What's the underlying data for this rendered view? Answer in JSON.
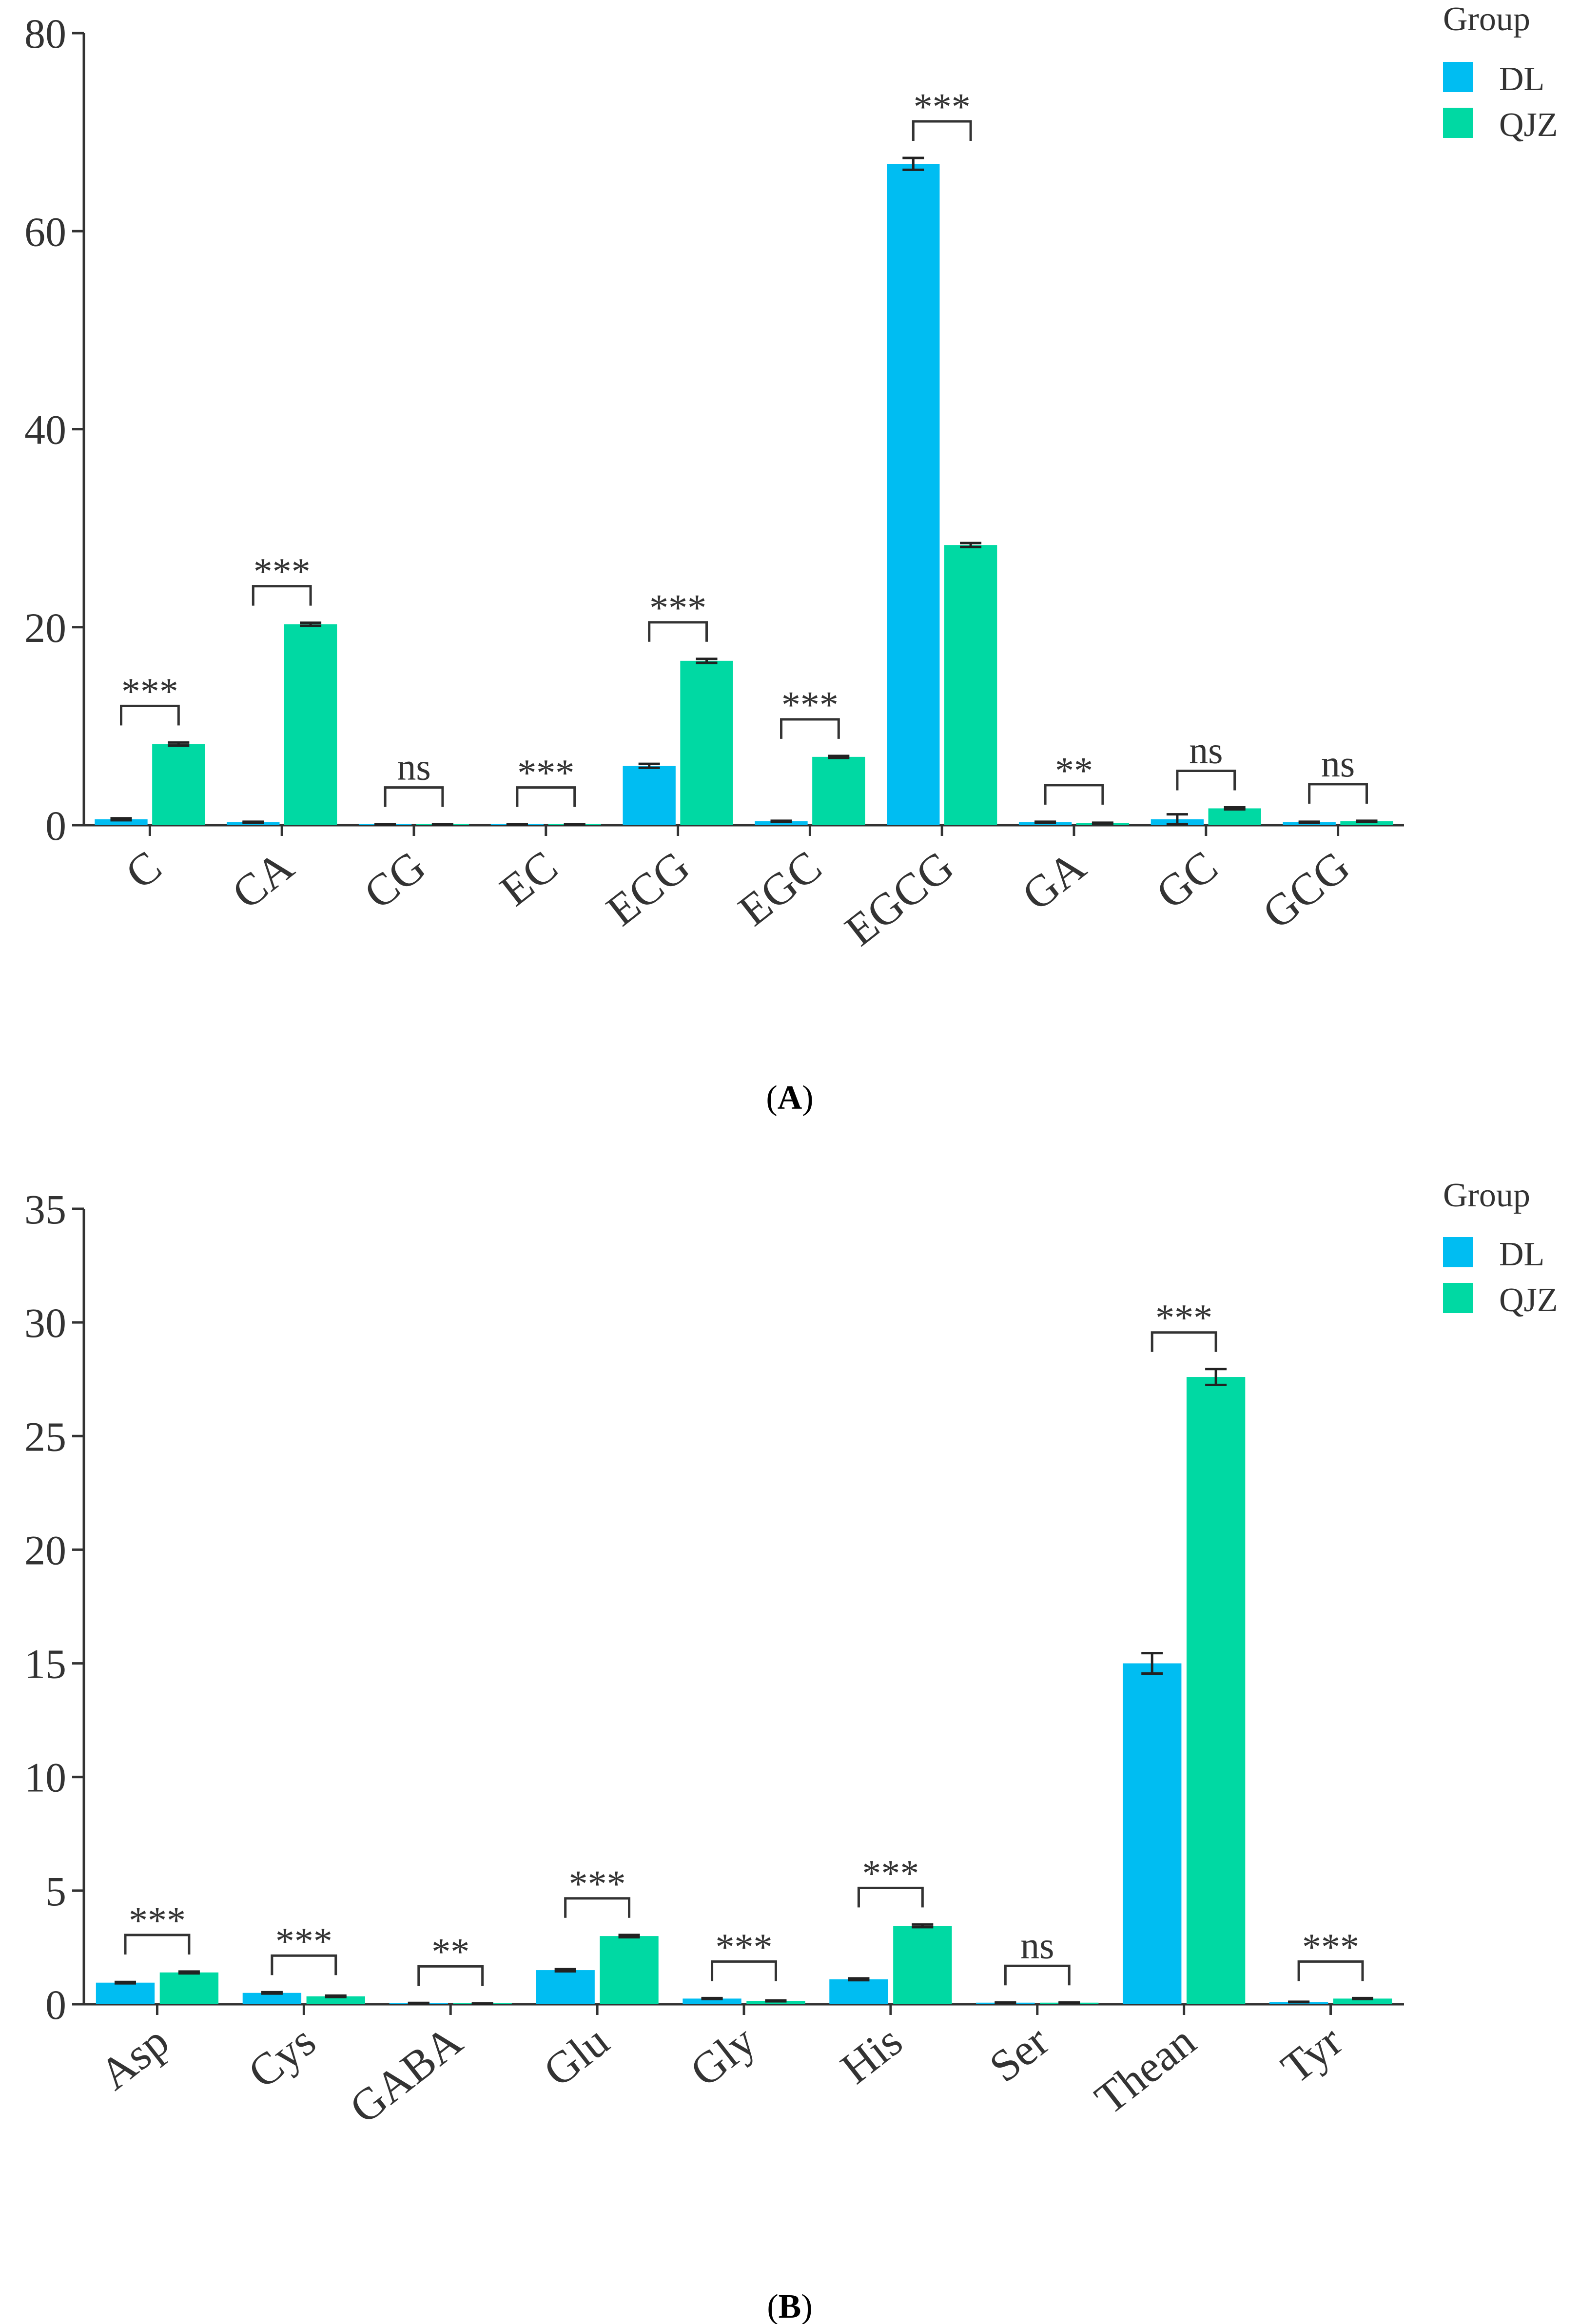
{
  "chart_data": [
    {
      "type": "bar",
      "panel": "A",
      "categories": [
        "C",
        "CA",
        "CG",
        "EC",
        "ECG",
        "EGC",
        "EGCG",
        "GA",
        "GC",
        "GCG"
      ],
      "series": [
        {
          "name": "DL",
          "color": "#00BDF2",
          "values": [
            0.6,
            0.3,
            0.1,
            0.1,
            6.0,
            0.4,
            66.8,
            0.3,
            0.6,
            0.3
          ],
          "errors": [
            0.1,
            0.05,
            0.02,
            0.02,
            0.2,
            0.05,
            0.6,
            0.05,
            0.5,
            0.05
          ]
        },
        {
          "name": "QJZ",
          "color": "#00D9A3",
          "values": [
            8.2,
            20.3,
            0.1,
            0.1,
            16.6,
            6.9,
            28.3,
            0.2,
            1.7,
            0.4
          ],
          "errors": [
            0.15,
            0.15,
            0.02,
            0.02,
            0.2,
            0.1,
            0.2,
            0.05,
            0.1,
            0.05
          ]
        }
      ],
      "significance": [
        "***",
        "***",
        "ns",
        "***",
        "***",
        "***",
        "***",
        "**",
        "ns",
        "ns"
      ],
      "ylim": [
        0,
        80
      ],
      "yticks": [
        0,
        20,
        40,
        60,
        80
      ],
      "legend": {
        "title": "Group",
        "position": "top-right"
      },
      "label": "A"
    },
    {
      "type": "bar",
      "panel": "B",
      "categories": [
        "Asp",
        "Cys",
        "GABA",
        "Glu",
        "Gly",
        "His",
        "Ser",
        "Thean",
        "Tyr"
      ],
      "series": [
        {
          "name": "DL",
          "color": "#00BDF2",
          "values": [
            0.95,
            0.5,
            0.05,
            1.5,
            0.25,
            1.1,
            0.07,
            15.0,
            0.1
          ],
          "errors": [
            0.03,
            0.03,
            0.01,
            0.05,
            0.02,
            0.04,
            0.01,
            0.45,
            0.01
          ]
        },
        {
          "name": "QJZ",
          "color": "#00D9A3",
          "values": [
            1.4,
            0.35,
            0.03,
            3.0,
            0.15,
            3.45,
            0.07,
            27.6,
            0.25
          ],
          "errors": [
            0.04,
            0.03,
            0.01,
            0.05,
            0.02,
            0.06,
            0.01,
            0.35,
            0.02
          ]
        }
      ],
      "significance": [
        "***",
        "***",
        "**",
        "***",
        "***",
        "***",
        "ns",
        "***",
        "***"
      ],
      "ylim": [
        0,
        35
      ],
      "yticks": [
        0,
        5,
        10,
        15,
        20,
        25,
        30,
        35
      ],
      "legend": {
        "title": "Group",
        "position": "top-right"
      },
      "label": "B"
    }
  ]
}
